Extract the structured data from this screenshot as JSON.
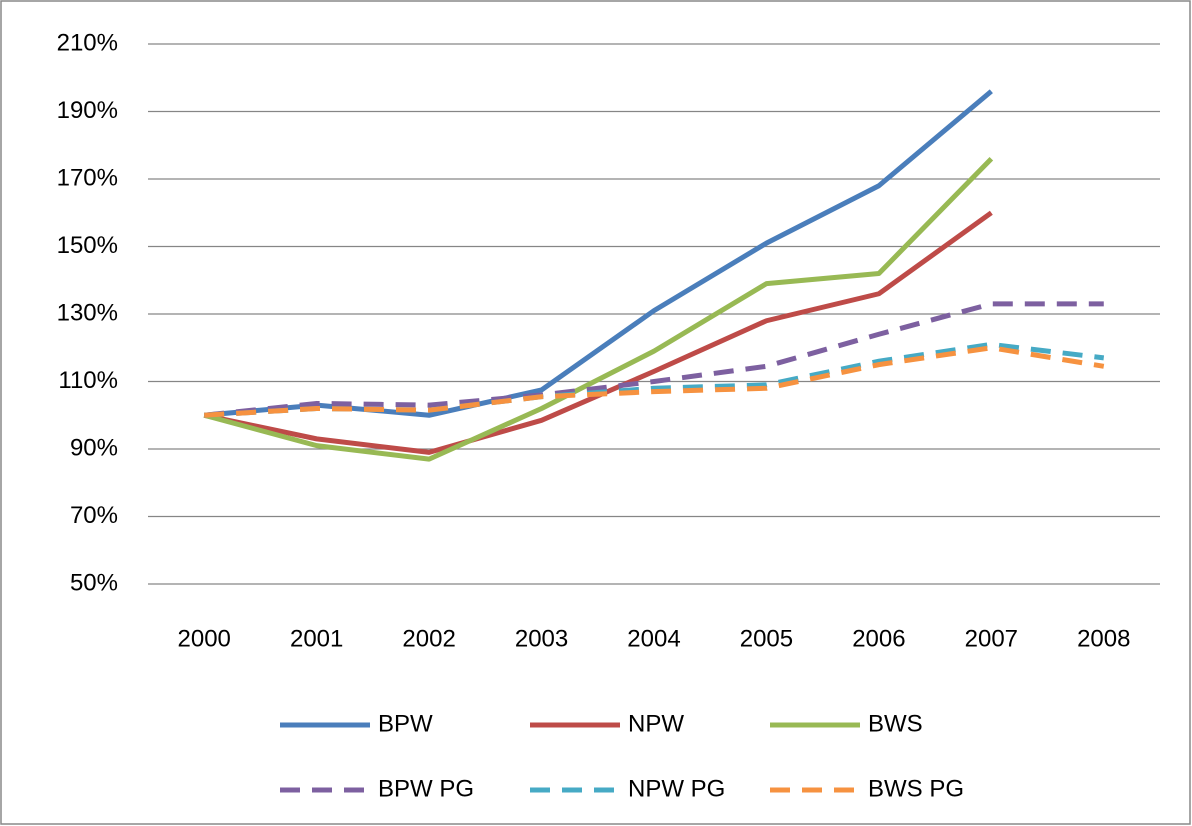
{
  "chart_data": {
    "type": "line",
    "categories": [
      "2000",
      "2001",
      "2002",
      "2003",
      "2004",
      "2005",
      "2006",
      "2007",
      "2008"
    ],
    "series": [
      {
        "name": "BPW",
        "color": "#4a7ebb",
        "dashed": false,
        "values": [
          100,
          103,
          100,
          107.5,
          131,
          151,
          168,
          196,
          null
        ]
      },
      {
        "name": "NPW",
        "color": "#be4b48",
        "dashed": false,
        "values": [
          100,
          93,
          89,
          98.5,
          113,
          128,
          136,
          160,
          null
        ]
      },
      {
        "name": "BWS",
        "color": "#98b954",
        "dashed": false,
        "values": [
          100,
          91,
          87,
          102,
          119,
          139,
          142,
          176,
          null
        ]
      },
      {
        "name": "BPW PG",
        "color": "#7d60a0",
        "dashed": true,
        "values": [
          100,
          103.5,
          103,
          106,
          110,
          114.5,
          124,
          133,
          133
        ]
      },
      {
        "name": "NPW PG",
        "color": "#46aac5",
        "dashed": true,
        "values": [
          100,
          102,
          101.5,
          105.5,
          108,
          109,
          116,
          121,
          117
        ]
      },
      {
        "name": "BWS PG",
        "color": "#f69240",
        "dashed": true,
        "values": [
          100,
          102,
          101.5,
          105.5,
          107,
          108,
          115,
          120,
          114.5
        ]
      }
    ],
    "ylim": [
      50,
      210
    ],
    "yticks": [
      {
        "value": 50,
        "label": "50%"
      },
      {
        "value": 70,
        "label": "70%"
      },
      {
        "value": 90,
        "label": "90%"
      },
      {
        "value": 110,
        "label": "110%"
      },
      {
        "value": 130,
        "label": "130%"
      },
      {
        "value": 150,
        "label": "150%"
      },
      {
        "value": 170,
        "label": "170%"
      },
      {
        "value": 190,
        "label": "190%"
      },
      {
        "value": 210,
        "label": "210%"
      }
    ],
    "grid": true,
    "legend": "bottom"
  }
}
